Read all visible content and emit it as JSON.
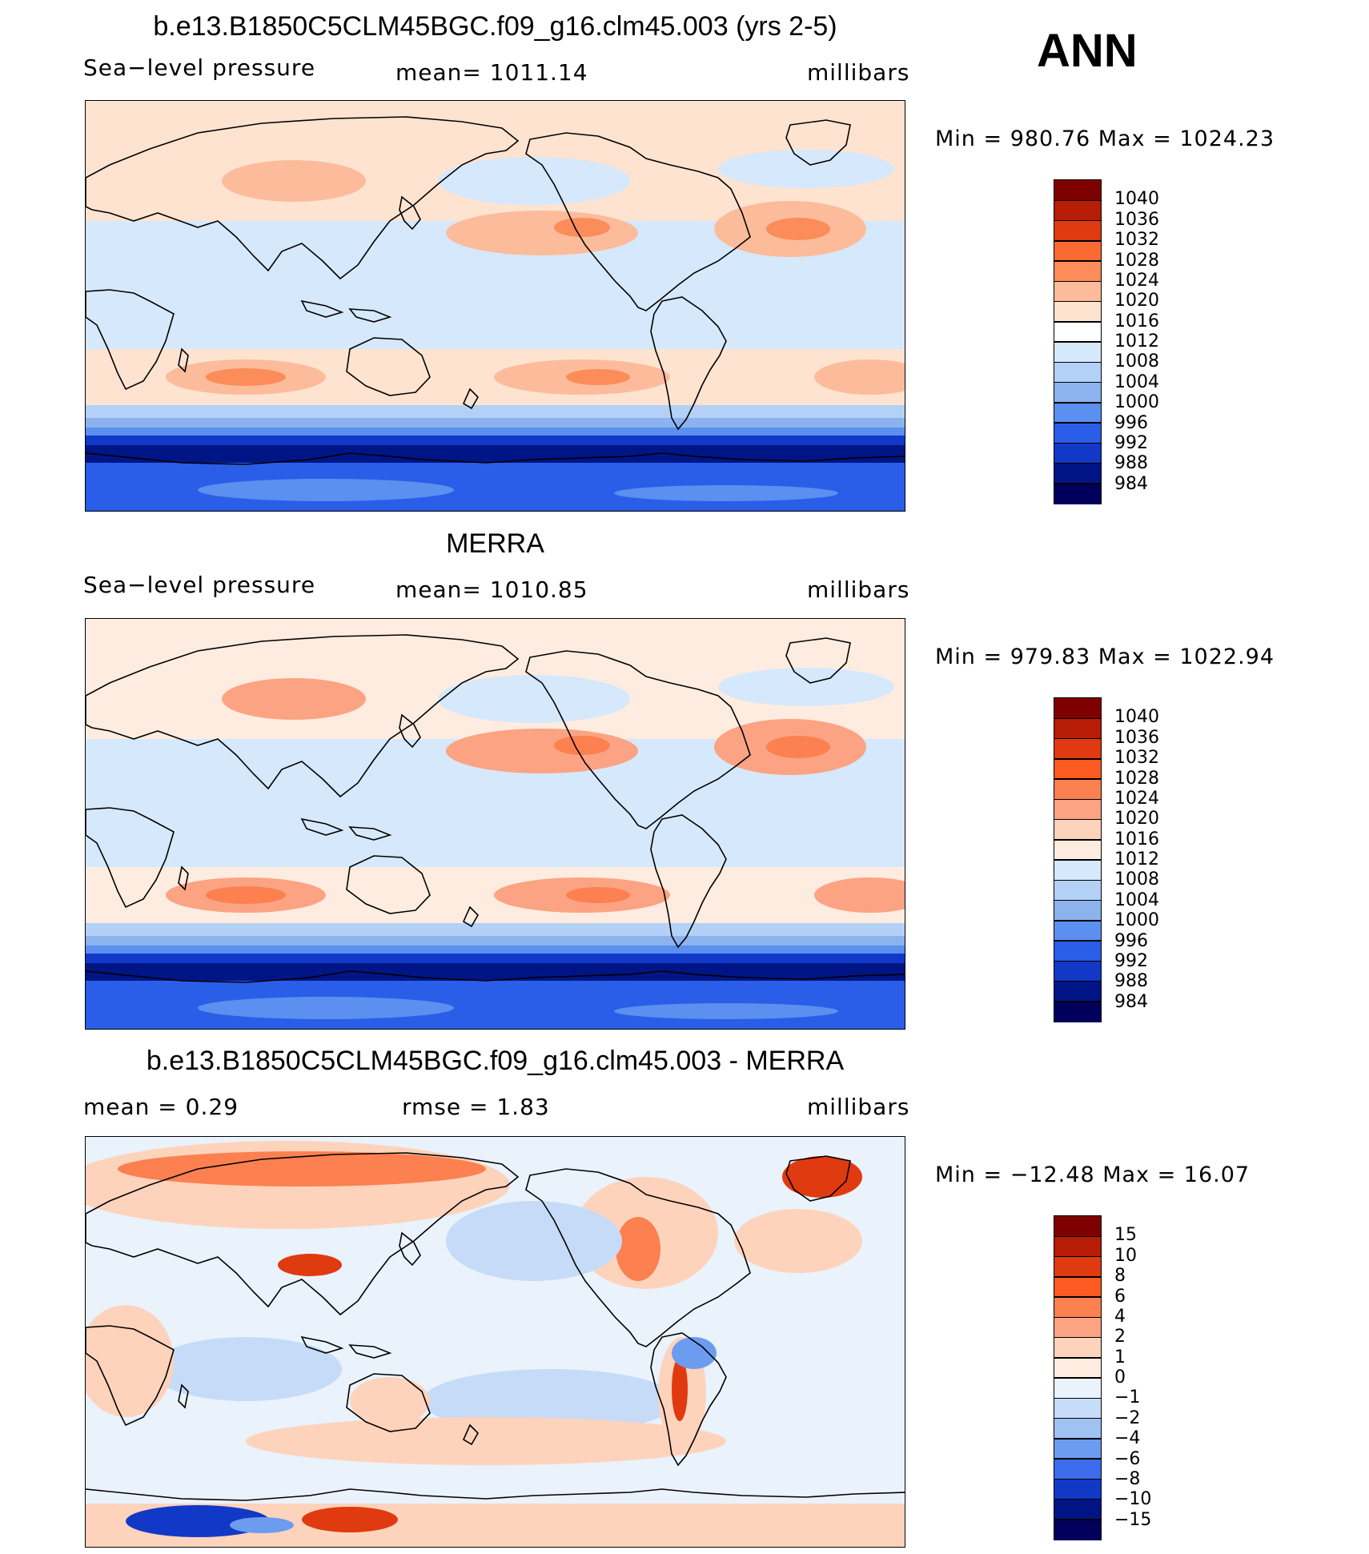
{
  "season": "ANN",
  "panels": [
    {
      "title": "b.e13.B1850C5CLM45BGC.f09_g16.clm45.003 (yrs 2-5)",
      "left": "Sea−level pressure",
      "center": "mean=  1011.14",
      "right": "millibars",
      "minmax": "Min  =  980.76  Max  =  1024.23",
      "levels": [
        "1040",
        "1036",
        "1032",
        "1028",
        "1024",
        "1020",
        "1016",
        "1012",
        "1008",
        "1004",
        "1000",
        "996",
        "992",
        "988",
        "984"
      ],
      "colors": [
        "#7f0000",
        "#b71c06",
        "#e03a10",
        "#fc6a33",
        "#fc8c59",
        "#fcbc9b",
        "#fee3d1",
        "#ffffff",
        "#d6e8fb",
        "#b3d1f7",
        "#8cb3ee",
        "#5b8ff0",
        "#2a5ee8",
        "#1238c8",
        "#001585",
        "#00005c"
      ],
      "contour_steps": [
        "1020",
        "1024",
        "1012",
        "1008",
        "996",
        "988",
        "984"
      ],
      "field_colors": {
        "tropics": "#d6e8fb",
        "subtropics": "#fee3d1",
        "highs": "#fcbc9b",
        "core_high": "#fc8c59",
        "polar_low": "#1238c8",
        "deep_low": "#001585",
        "antarctic": "#2a5ee8"
      }
    },
    {
      "title": "MERRA",
      "left": "Sea−level pressure",
      "center": "mean=  1010.85",
      "right": "millibars",
      "minmax": "Min  =  979.83  Max  =  1022.94",
      "levels": [
        "1040",
        "1036",
        "1032",
        "1028",
        "1024",
        "1020",
        "1016",
        "1012",
        "1008",
        "1004",
        "1000",
        "996",
        "992",
        "988",
        "984"
      ],
      "colors": [
        "#7f0000",
        "#b71c06",
        "#e03a10",
        "#fc5a20",
        "#fc8050",
        "#fca384",
        "#fed3bc",
        "#ffece0",
        "#d6e8fb",
        "#b3d1f7",
        "#8cb3ee",
        "#5b8ff0",
        "#2a5ee8",
        "#1238c8",
        "#001585",
        "#00005c"
      ],
      "field_colors": {
        "tropics": "#d6e8fb",
        "subtropics": "#ffece0",
        "highs": "#fca384",
        "core_high": "#fc8050",
        "polar_low": "#1238c8",
        "deep_low": "#001585",
        "antarctic": "#2a5ee8"
      }
    },
    {
      "title": "b.e13.B1850C5CLM45BGC.f09_g16.clm45.003 - MERRA",
      "left": "mean  =     0.29",
      "center": "rmse  =     1.83",
      "right": "millibars",
      "minmax": "Min  = −12.48  Max  =    16.07",
      "levels": [
        "15",
        "10",
        "8",
        "6",
        "4",
        "2",
        "1",
        "0",
        "−1",
        "−2",
        "−4",
        "−6",
        "−8",
        "−10",
        "−15"
      ],
      "colors": [
        "#7f0000",
        "#b71c06",
        "#e03a10",
        "#fc5a20",
        "#fc8050",
        "#fca384",
        "#fed3bc",
        "#ffece0",
        "#eaf2fb",
        "#c6dbf7",
        "#9ec2f2",
        "#6b9cf0",
        "#3c6ceb",
        "#1238c8",
        "#001585",
        "#00005c"
      ],
      "field_colors": {
        "positive": "#fed3bc",
        "strong_positive": "#fc8050",
        "peak": "#e03a10",
        "negative": "#c6dbf7",
        "weak_negative": "#eaf2fb",
        "strong_negative": "#6b9cf0",
        "deep_negative": "#1238c8"
      }
    }
  ]
}
